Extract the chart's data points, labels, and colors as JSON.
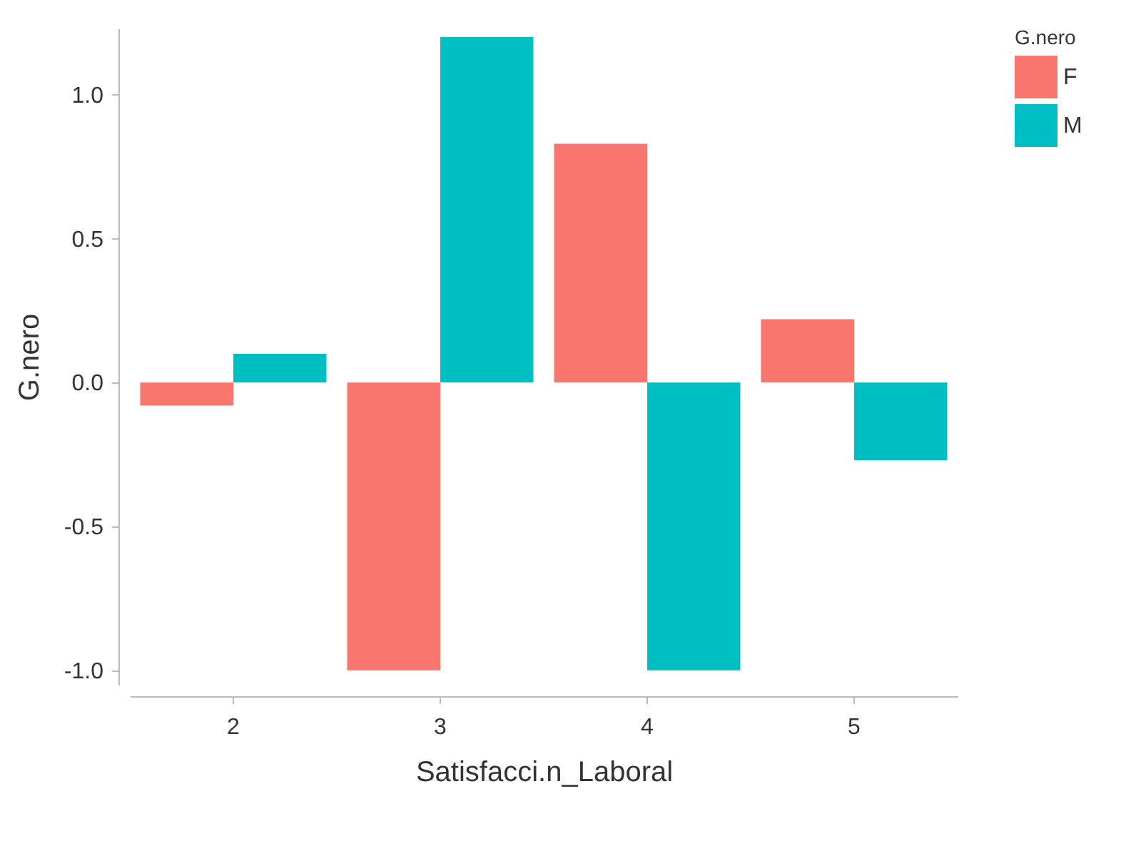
{
  "chart_data": {
    "type": "bar",
    "xlabel": "Satisfacci.n_Laboral",
    "ylabel": "G.nero",
    "legend_title": "G.nero",
    "categories": [
      "2",
      "3",
      "4",
      "5"
    ],
    "series": [
      {
        "name": "F",
        "color": "#f8766d",
        "values": [
          -0.08,
          -1.0,
          0.83,
          0.22
        ]
      },
      {
        "name": "M",
        "color": "#00bfc4",
        "values": [
          0.1,
          1.2,
          -1.0,
          -0.27
        ]
      }
    ],
    "ylim": [
      -1.05,
      1.23
    ],
    "yticks": [
      {
        "value": -1,
        "label": "-1.0"
      },
      {
        "value": -0.5,
        "label": "-0.5"
      },
      {
        "value": 0,
        "label": "0.0"
      },
      {
        "value": 0.5,
        "label": "0.5"
      },
      {
        "value": 1,
        "label": "1.0"
      }
    ],
    "grid": false,
    "legend": "top right"
  }
}
